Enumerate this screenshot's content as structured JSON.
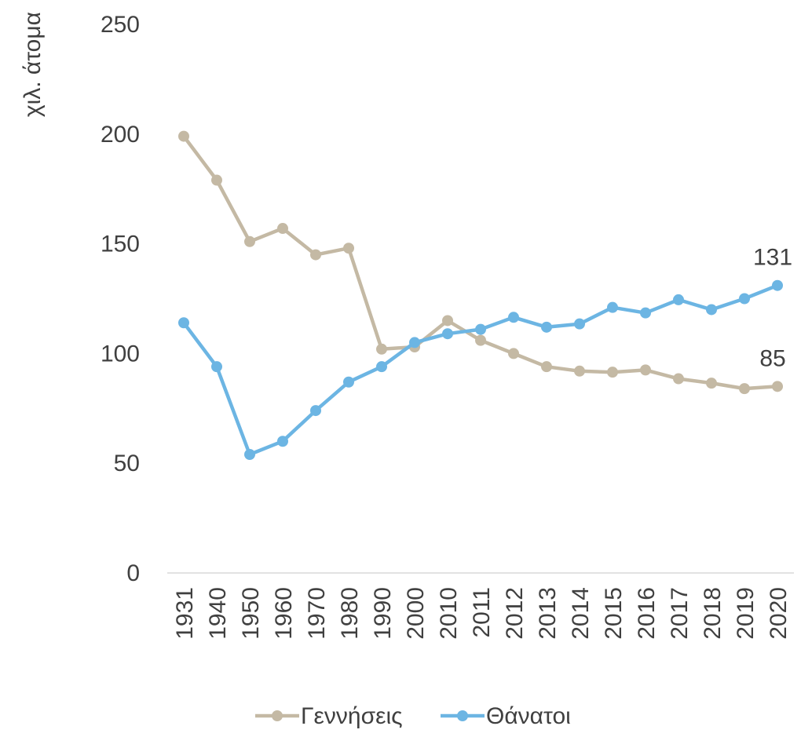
{
  "chart_data": {
    "type": "line",
    "title": "",
    "ylabel": "χιλ. άτομα",
    "xlabel": "",
    "ylim": [
      0,
      250
    ],
    "yticks": [
      0,
      50,
      100,
      150,
      200,
      250
    ],
    "grid": false,
    "legend_position": "bottom",
    "categories": [
      "1931",
      "1940",
      "1950",
      "1960",
      "1970",
      "1980",
      "1990",
      "2000",
      "2010",
      "2011",
      "2012",
      "2013",
      "2014",
      "2015",
      "2016",
      "2017",
      "2018",
      "2019",
      "2020"
    ],
    "series": [
      {
        "name": "Γεννήσεις",
        "color": "#c4b9a4",
        "values": [
          199,
          179,
          151,
          157,
          145,
          148,
          102,
          103,
          115,
          106,
          100,
          94,
          92,
          91.5,
          92.5,
          88.5,
          86.5,
          84,
          85
        ],
        "end_label": "85"
      },
      {
        "name": "Θάνατοι",
        "color": "#6cb5e3",
        "values": [
          114,
          94,
          54,
          60,
          74,
          87,
          94,
          105,
          109,
          111,
          116.5,
          112,
          113.5,
          121,
          118.5,
          124.5,
          120,
          125,
          131
        ],
        "end_label": "131"
      }
    ]
  }
}
